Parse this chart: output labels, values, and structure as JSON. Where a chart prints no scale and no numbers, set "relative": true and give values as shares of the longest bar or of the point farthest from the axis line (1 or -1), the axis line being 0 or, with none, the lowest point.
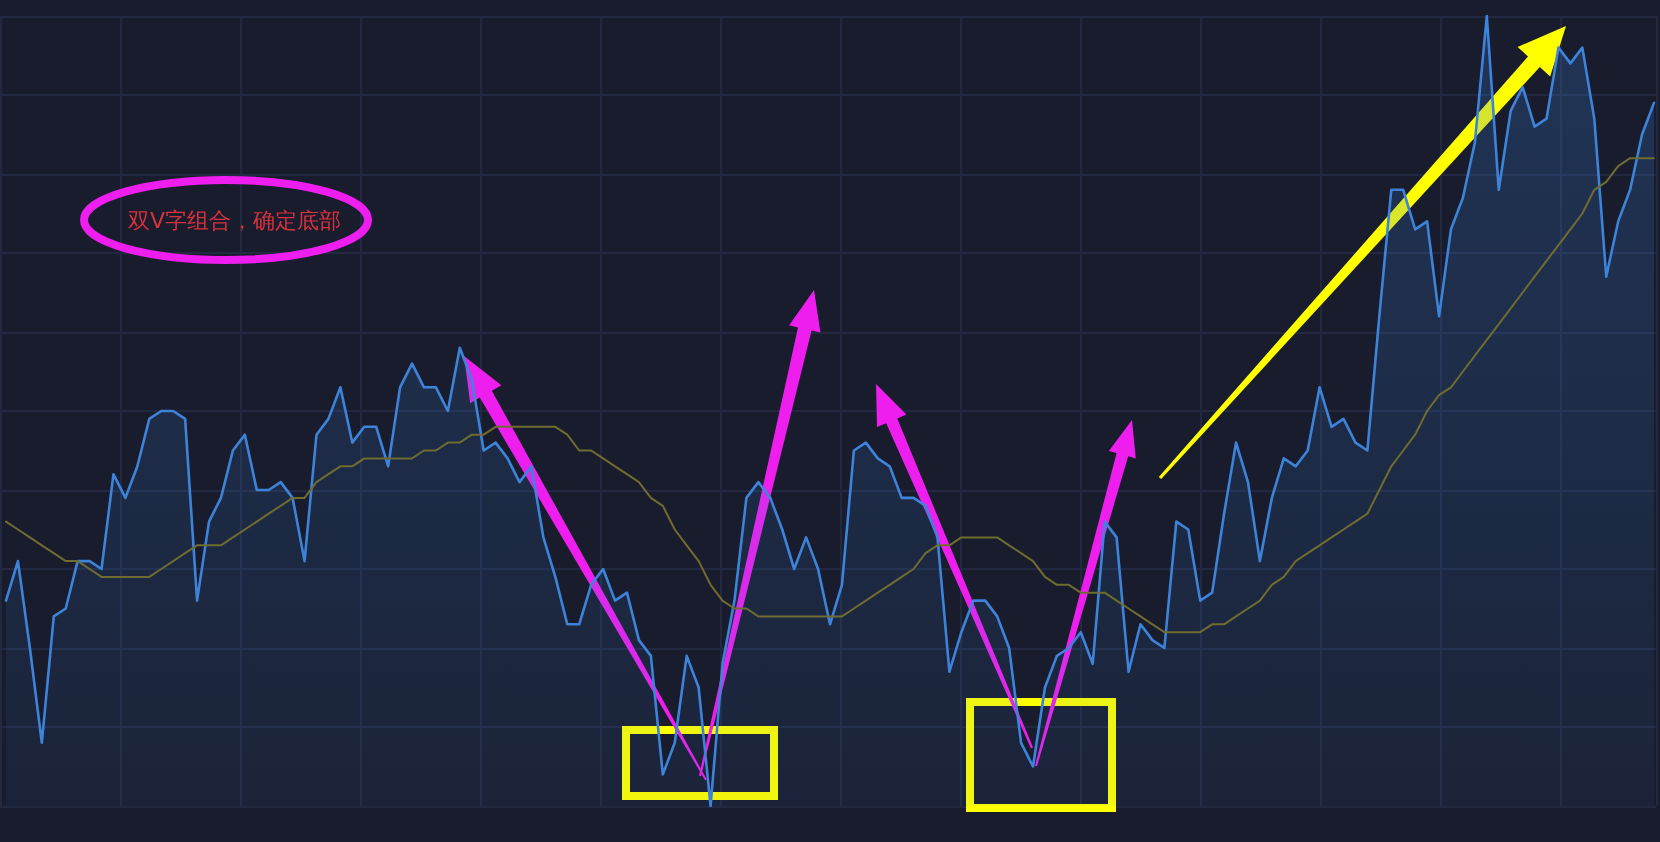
{
  "chart_data": {
    "type": "area",
    "relative": true,
    "grid": true,
    "marker": "none",
    "annotations": [
      "双V字组合，确定底部"
    ],
    "categories": [
      null,
      null,
      null,
      null,
      null,
      null,
      null,
      null,
      null,
      null,
      null,
      null,
      null,
      null,
      null,
      null,
      null,
      null,
      null,
      null,
      null,
      null,
      null,
      null,
      null,
      null,
      null,
      null,
      null,
      null,
      null,
      null,
      null,
      null,
      null,
      null,
      null,
      null,
      null,
      null,
      null,
      null,
      null,
      null,
      null,
      null,
      null,
      null,
      null,
      null,
      null,
      null,
      null,
      null,
      null,
      null,
      null,
      null,
      null,
      null,
      null,
      null,
      null,
      null,
      null,
      null,
      null,
      null,
      null,
      null,
      null,
      null,
      null,
      null,
      null,
      null,
      null,
      null,
      null,
      null,
      null,
      null,
      null,
      null,
      null,
      null,
      null,
      null,
      null,
      null,
      null,
      null,
      null,
      null,
      null,
      null,
      null,
      null,
      null,
      null,
      null,
      null,
      null,
      null,
      null,
      null,
      null,
      null,
      null,
      null,
      null,
      null,
      null,
      null,
      null,
      null,
      null,
      null,
      null,
      null,
      null,
      null,
      null,
      null,
      null,
      null,
      null,
      null,
      null,
      null,
      null,
      null,
      null,
      null,
      null,
      null,
      null,
      null,
      null
    ],
    "series": [
      {
        "color": "#3d83d9",
        "values": [
          0.26,
          0.31,
          0.2,
          0.08,
          0.24,
          0.25,
          0.31,
          0.31,
          0.3,
          0.42,
          0.39,
          0.43,
          0.49,
          0.5,
          0.5,
          0.49,
          0.26,
          0.36,
          0.39,
          0.45,
          0.47,
          0.4,
          0.4,
          0.41,
          0.39,
          0.31,
          0.47,
          0.49,
          0.53,
          0.46,
          0.48,
          0.48,
          0.43,
          0.53,
          0.56,
          0.53,
          0.53,
          0.5,
          0.58,
          0.54,
          0.45,
          0.46,
          0.44,
          0.41,
          0.43,
          0.34,
          0.29,
          0.23,
          0.23,
          0.28,
          0.3,
          0.26,
          0.27,
          0.21,
          0.19,
          0.04,
          0.08,
          0.19,
          0.15,
          0,
          0.18,
          0.26,
          0.39,
          0.41,
          0.39,
          0.35,
          0.3,
          0.34,
          0.3,
          0.23,
          0.28,
          0.45,
          0.46,
          0.44,
          0.43,
          0.39,
          0.39,
          0.38,
          0.34,
          0.17,
          0.22,
          0.26,
          0.26,
          0.24,
          0.2,
          0.08,
          0.05,
          0.15,
          0.19,
          0.2,
          0.22,
          0.18,
          0.36,
          0.34,
          0.17,
          0.23,
          0.21,
          0.2,
          0.36,
          0.35,
          0.26,
          0.27,
          0.37,
          0.46,
          0.41,
          0.31,
          0.39,
          0.44,
          0.43,
          0.45,
          0.53,
          0.48,
          0.49,
          0.46,
          0.45,
          0.62,
          0.78,
          0.78,
          0.73,
          0.74,
          0.62,
          0.73,
          0.77,
          0.84,
          1,
          0.78,
          0.88,
          0.91,
          0.86,
          0.87,
          0.96,
          0.94,
          0.96,
          0.87,
          0.67,
          0.74,
          0.78,
          0.85,
          0.89
        ]
      },
      {
        "type": "line",
        "color": "#6e6c30",
        "values": [
          0.36,
          0.35,
          0.34,
          0.33,
          0.32,
          0.31,
          0.31,
          0.3,
          0.29,
          0.29,
          0.29,
          0.29,
          0.29,
          0.3,
          0.31,
          0.32,
          0.33,
          0.33,
          0.33,
          0.34,
          0.35,
          0.36,
          0.37,
          0.38,
          0.39,
          0.39,
          0.41,
          0.42,
          0.43,
          0.43,
          0.44,
          0.44,
          0.44,
          0.44,
          0.44,
          0.45,
          0.45,
          0.46,
          0.46,
          0.47,
          0.47,
          0.48,
          0.48,
          0.48,
          0.48,
          0.48,
          0.48,
          0.47,
          0.45,
          0.45,
          0.44,
          0.43,
          0.42,
          0.41,
          0.39,
          0.38,
          0.35,
          0.33,
          0.31,
          0.28,
          0.26,
          0.25,
          0.25,
          0.24,
          0.24,
          0.24,
          0.24,
          0.24,
          0.24,
          0.24,
          0.24,
          0.25,
          0.26,
          0.27,
          0.28,
          0.29,
          0.3,
          0.32,
          0.33,
          0.33,
          0.34,
          0.34,
          0.34,
          0.34,
          0.33,
          0.32,
          0.31,
          0.29,
          0.28,
          0.28,
          0.27,
          0.27,
          0.27,
          0.26,
          0.25,
          0.24,
          0.23,
          0.22,
          0.22,
          0.22,
          0.22,
          0.23,
          0.23,
          0.24,
          0.25,
          0.26,
          0.28,
          0.29,
          0.31,
          0.32,
          0.33,
          0.34,
          0.35,
          0.36,
          0.37,
          0.4,
          0.43,
          0.45,
          0.47,
          0.5,
          0.52,
          0.53,
          0.55,
          0.57,
          0.59,
          0.61,
          0.63,
          0.65,
          0.67,
          0.69,
          0.71,
          0.73,
          0.75,
          0.78,
          0.79,
          0.81,
          0.82,
          0.82,
          0.82
        ]
      }
    ]
  }
}
